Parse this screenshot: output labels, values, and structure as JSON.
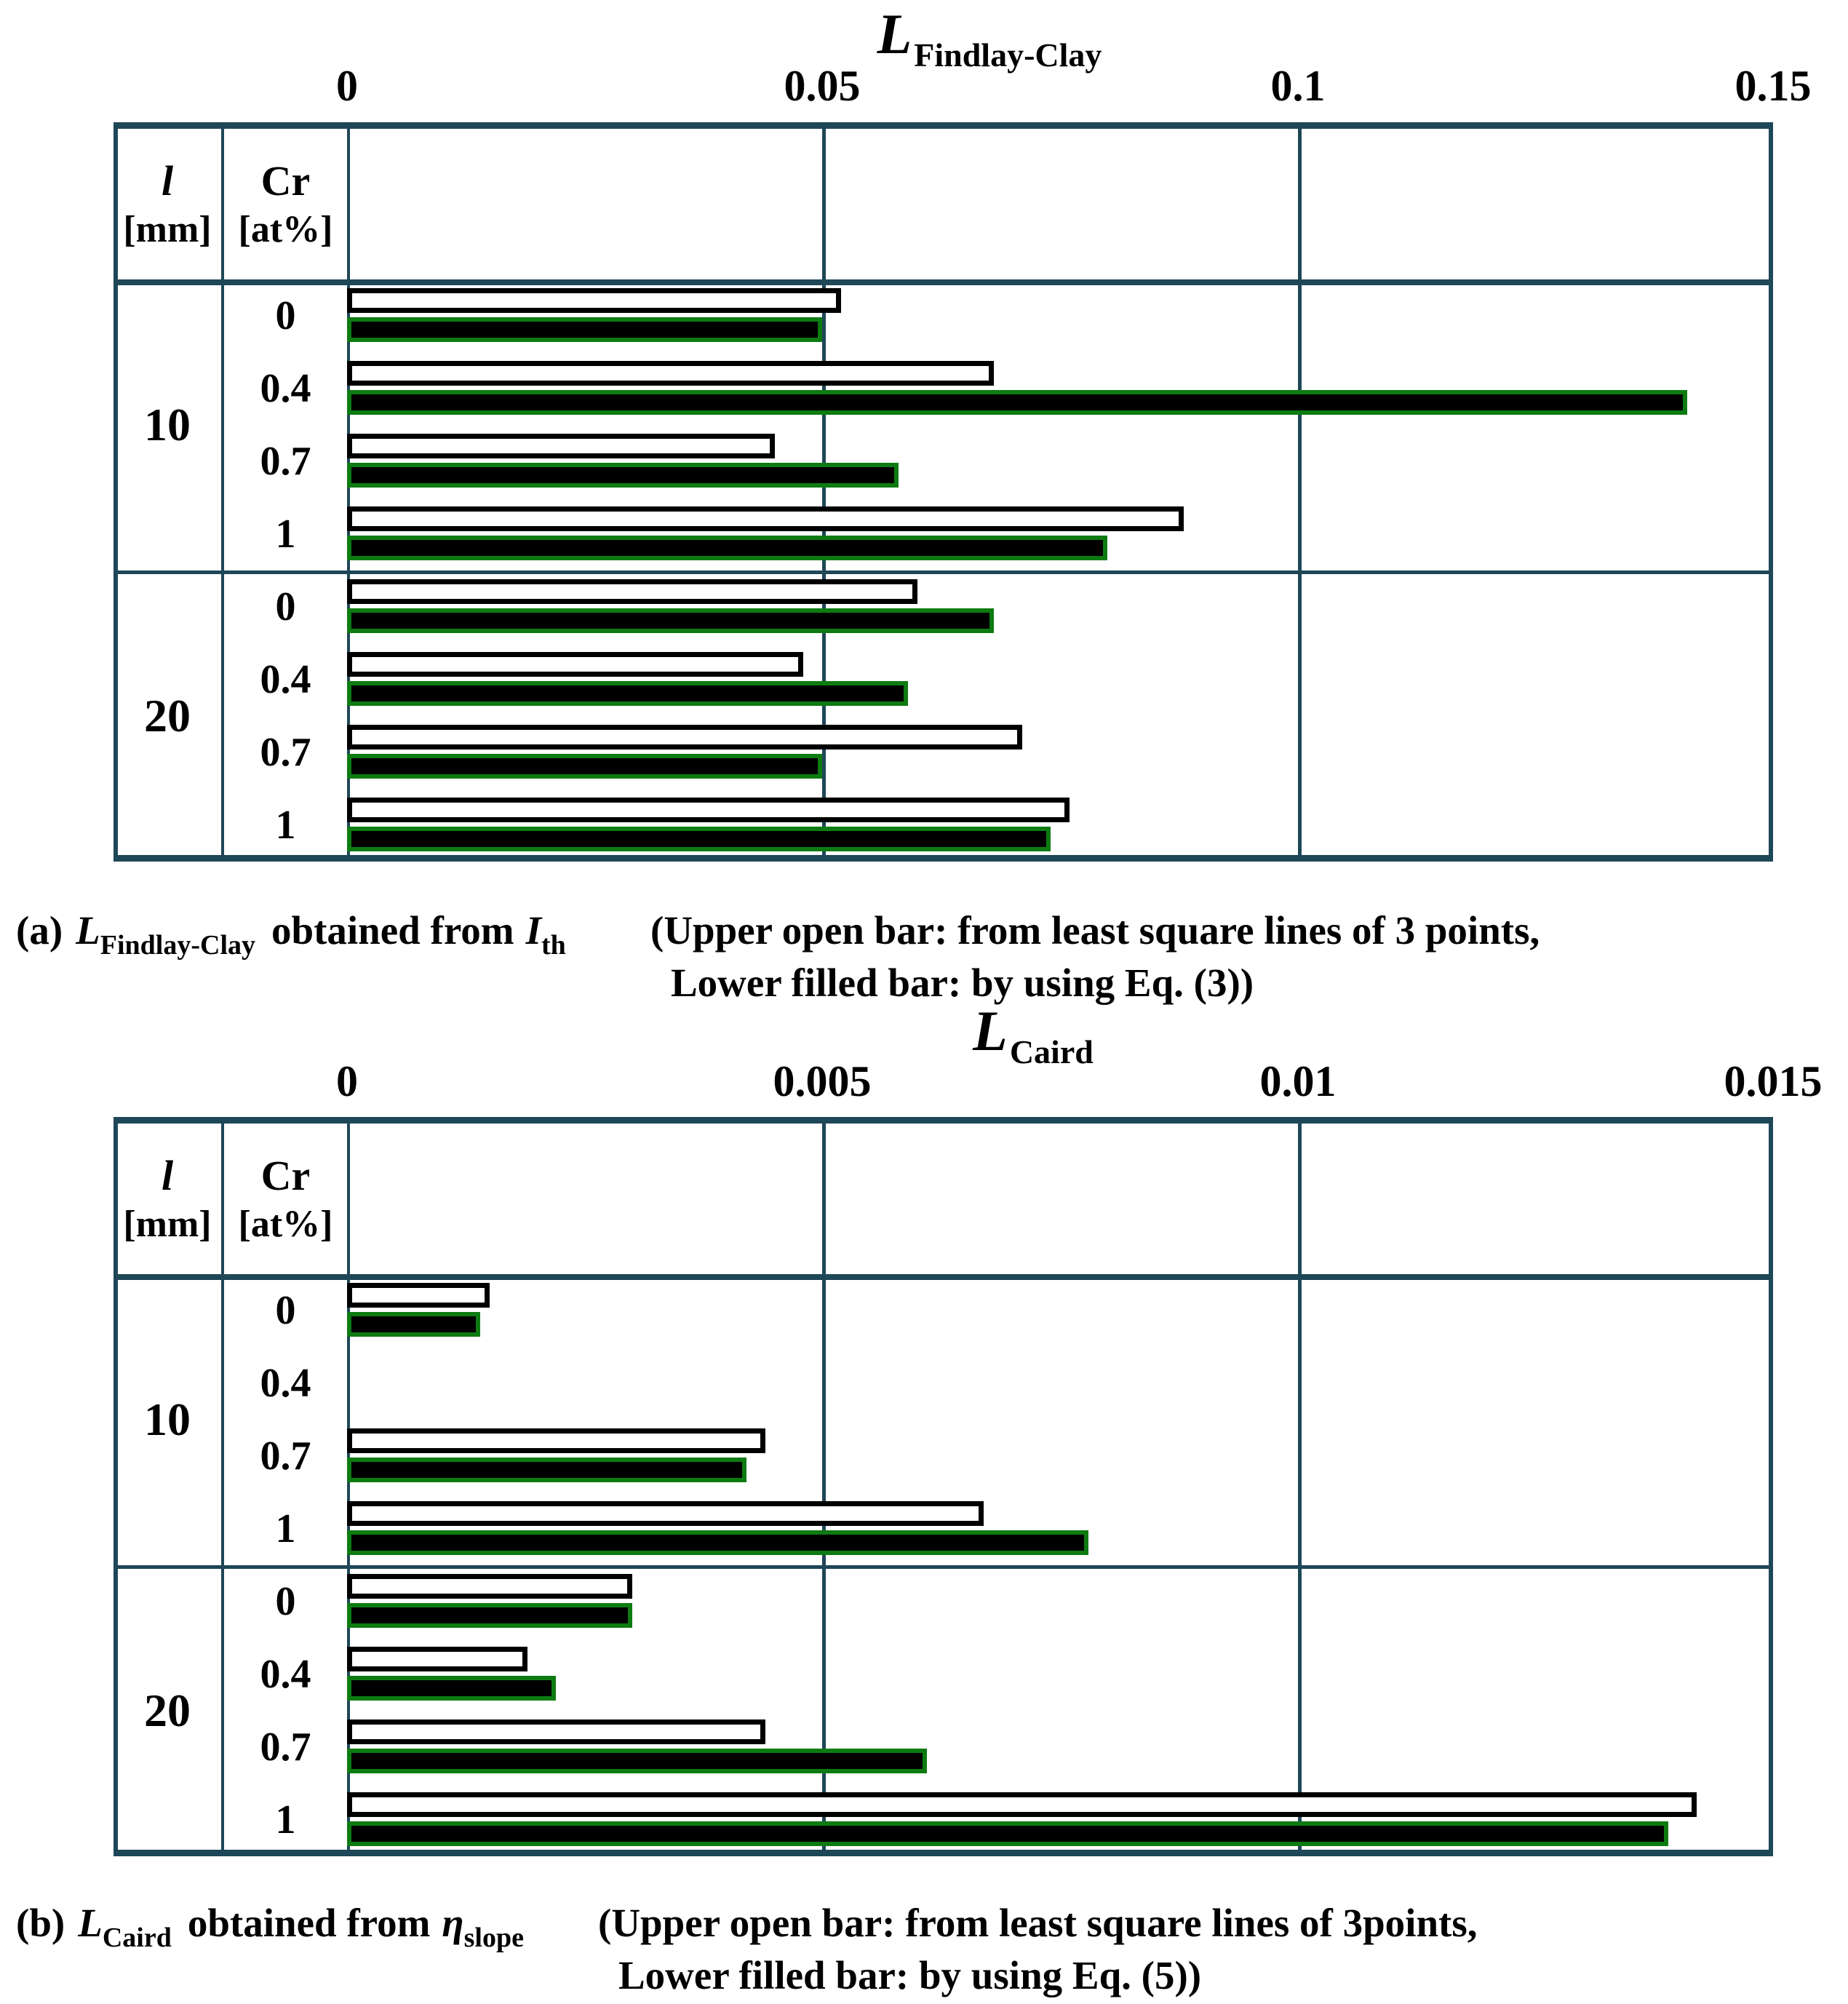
{
  "styles": {
    "line_color": "#1e4757",
    "open_bar_fill": "#ffffff",
    "open_bar_border": "#000000",
    "filled_bar_fill": "#000000",
    "filled_bar_border": "#0d7b11"
  },
  "chart_data": [
    {
      "id": "a",
      "type": "bar",
      "orientation": "horizontal",
      "title": {
        "main": "L",
        "sub": "Findlay-Clay"
      },
      "axis": {
        "min": 0,
        "max": 0.15,
        "tick_labels": [
          "0",
          "0.05",
          "0.1",
          "0.15"
        ],
        "tick_values": [
          0,
          0.05,
          0.1,
          0.15
        ],
        "position": "top",
        "gridlines": true
      },
      "columns": {
        "col1_title": "l",
        "col1_unit": "[mm]",
        "col2_title": "Cr",
        "col2_unit": "[at%]"
      },
      "groups": [
        {
          "label": "10",
          "rows": [
            {
              "cr": "0",
              "open": 0.052,
              "filled": 0.05
            },
            {
              "cr": "0.4",
              "open": 0.068,
              "filled": 0.141
            },
            {
              "cr": "0.7",
              "open": 0.045,
              "filled": 0.058
            },
            {
              "cr": "1",
              "open": 0.088,
              "filled": 0.08
            }
          ]
        },
        {
          "label": "20",
          "rows": [
            {
              "cr": "0",
              "open": 0.06,
              "filled": 0.068
            },
            {
              "cr": "0.4",
              "open": 0.048,
              "filled": 0.059
            },
            {
              "cr": "0.7",
              "open": 0.071,
              "filled": 0.05
            },
            {
              "cr": "1",
              "open": 0.076,
              "filled": 0.074
            }
          ]
        }
      ],
      "caption": {
        "prefix": "(a)",
        "symbol_main": "L",
        "symbol_sub": "Findlay-Clay",
        "middle": "obtained from",
        "source_main": "I",
        "source_sub": "th",
        "note_line1": "(Upper open bar: from least square lines of 3 points,",
        "note_line2": "Lower filled bar: by using Eq. (3))"
      }
    },
    {
      "id": "b",
      "type": "bar",
      "orientation": "horizontal",
      "title": {
        "main": "L",
        "sub": "Caird"
      },
      "axis": {
        "min": 0,
        "max": 0.015,
        "tick_labels": [
          "0",
          "0.005",
          "0.01",
          "0.015"
        ],
        "tick_values": [
          0,
          0.005,
          0.01,
          0.015
        ],
        "position": "top",
        "gridlines": true
      },
      "columns": {
        "col1_title": "l",
        "col1_unit": "[mm]",
        "col2_title": "Cr",
        "col2_unit": "[at%]"
      },
      "groups": [
        {
          "label": "10",
          "rows": [
            {
              "cr": "0",
              "open": 0.0015,
              "filled": 0.0014
            },
            {
              "cr": "0.4",
              "open": null,
              "filled": null
            },
            {
              "cr": "0.7",
              "open": 0.0044,
              "filled": 0.0042
            },
            {
              "cr": "1",
              "open": 0.0067,
              "filled": 0.0078
            }
          ]
        },
        {
          "label": "20",
          "rows": [
            {
              "cr": "0",
              "open": 0.003,
              "filled": 0.003
            },
            {
              "cr": "0.4",
              "open": 0.0019,
              "filled": 0.0022
            },
            {
              "cr": "0.7",
              "open": 0.0044,
              "filled": 0.0061
            },
            {
              "cr": "1",
              "open": 0.0142,
              "filled": 0.0139
            }
          ]
        }
      ],
      "caption": {
        "prefix": "(b)",
        "symbol_main": "L",
        "symbol_sub": "Caird",
        "middle": "obtained from",
        "source_main": "η",
        "source_sub": "slope",
        "note_line1": "(Upper open bar: from least square lines of 3points,",
        "note_line2": "Lower filled bar: by using Eq. (5))"
      }
    }
  ]
}
